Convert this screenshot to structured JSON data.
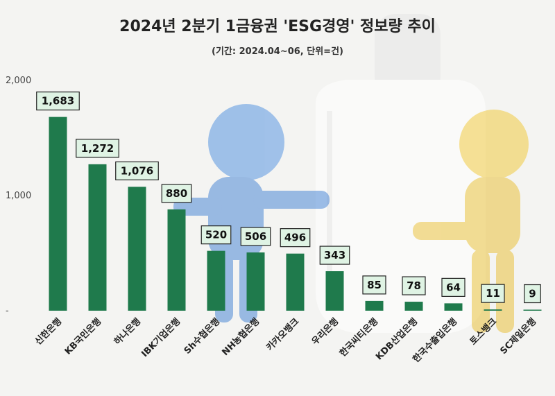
{
  "chart_data": {
    "type": "bar",
    "title": "2024년 2분기 1금융권 'ESG경영' 정보량 추이",
    "subtitle": "(기간: 2024.04~06, 단위=건)",
    "categories": [
      "신한은행",
      "KB국민은행",
      "하나은행",
      "IBK기업은행",
      "Sh수협은행",
      "NH농협은행",
      "카카오뱅크",
      "우리은행",
      "한국씨티은행",
      "KDB산업은행",
      "한국수출입은행",
      "토스뱅크",
      "SC제일은행"
    ],
    "values": [
      1683,
      1272,
      1076,
      880,
      520,
      506,
      496,
      343,
      85,
      78,
      64,
      11,
      9
    ],
    "value_labels": [
      "1,683",
      "1,272",
      "1,076",
      "880",
      "520",
      "506",
      "496",
      "343",
      "85",
      "78",
      "64",
      "11",
      "9"
    ],
    "y_ticks": [
      {
        "value": 0,
        "label": "-"
      },
      {
        "value": 1000,
        "label": "1,000"
      },
      {
        "value": 2000,
        "label": "2,000"
      }
    ],
    "ylim": [
      0,
      2000
    ],
    "grid": false,
    "colors": {
      "bar": "#1f7a4c",
      "label_bg": "#dff3e4",
      "label_border": "#222222"
    }
  }
}
